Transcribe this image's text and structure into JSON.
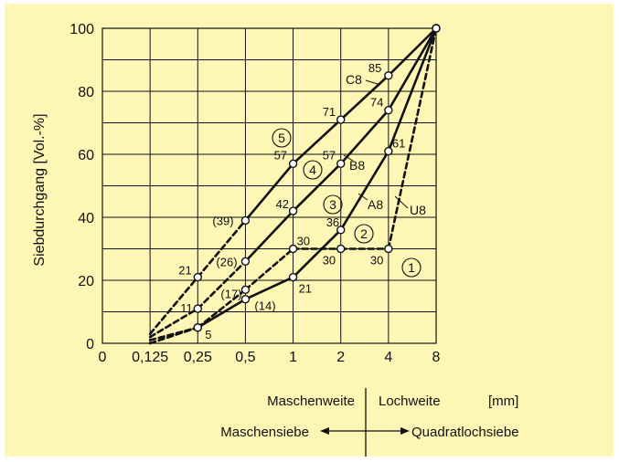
{
  "chart_data": {
    "type": "line",
    "ylabel": "Siebdurchgang [Vol.-%]",
    "ylim": [
      0,
      100
    ],
    "y_ticks": [
      "0",
      "20",
      "40",
      "60",
      "80",
      "100"
    ],
    "x_tick_labels": [
      "0",
      "0,125",
      "0,25",
      "0,5",
      "1",
      "2",
      "4",
      "8"
    ],
    "series": [
      {
        "name": "A8",
        "values": [
          {
            "x": 0.125,
            "y": 0
          },
          {
            "x": 0.25,
            "y": 5
          },
          {
            "x": 0.5,
            "y": 14
          },
          {
            "x": 1,
            "y": 21
          },
          {
            "x": 2,
            "y": 36
          },
          {
            "x": 4,
            "y": 61
          },
          {
            "x": 8,
            "y": 100
          }
        ]
      },
      {
        "name": "B8",
        "values": [
          {
            "x": 0.125,
            "y": 2
          },
          {
            "x": 0.25,
            "y": 11
          },
          {
            "x": 0.5,
            "y": 26
          },
          {
            "x": 1,
            "y": 42
          },
          {
            "x": 2,
            "y": 57
          },
          {
            "x": 4,
            "y": 74
          },
          {
            "x": 8,
            "y": 100
          }
        ]
      },
      {
        "name": "C8",
        "values": [
          {
            "x": 0.125,
            "y": 3
          },
          {
            "x": 0.25,
            "y": 21
          },
          {
            "x": 0.5,
            "y": 39
          },
          {
            "x": 1,
            "y": 57
          },
          {
            "x": 2,
            "y": 71
          },
          {
            "x": 4,
            "y": 85
          },
          {
            "x": 8,
            "y": 100
          }
        ]
      },
      {
        "name": "U8",
        "values": [
          {
            "x": 0.125,
            "y": 1
          },
          {
            "x": 0.25,
            "y": 5
          },
          {
            "x": 0.5,
            "y": 17
          },
          {
            "x": 1,
            "y": 30
          },
          {
            "x": 2,
            "y": 30
          },
          {
            "x": 4,
            "y": 30
          },
          {
            "x": 8,
            "y": 100
          }
        ]
      }
    ],
    "point_labels": [
      {
        "text": "5",
        "x": 0.25,
        "y": 5
      },
      {
        "text": "(14)",
        "x": 0.5,
        "y": 14
      },
      {
        "text": "21",
        "x": 1,
        "y": 21
      },
      {
        "text": "36",
        "x": 2,
        "y": 36
      },
      {
        "text": "61",
        "x": 4,
        "y": 61
      },
      {
        "text": "11",
        "x": 0.25,
        "y": 11
      },
      {
        "text": "(26)",
        "x": 0.5,
        "y": 26
      },
      {
        "text": "42",
        "x": 1,
        "y": 42
      },
      {
        "text": "57",
        "x": 2,
        "y": 57
      },
      {
        "text": "74",
        "x": 4,
        "y": 74
      },
      {
        "text": "21",
        "x": 0.25,
        "y": 21
      },
      {
        "text": "(39)",
        "x": 0.5,
        "y": 39
      },
      {
        "text": "57",
        "x": 1,
        "y": 57
      },
      {
        "text": "71",
        "x": 2,
        "y": 71
      },
      {
        "text": "85",
        "x": 4,
        "y": 85
      },
      {
        "text": "(17)",
        "x": 0.5,
        "y": 17
      },
      {
        "text": "30",
        "x": 1,
        "y": 30
      },
      {
        "text": "30",
        "x": 2,
        "y": 30
      },
      {
        "text": "30",
        "x": 4,
        "y": 30
      }
    ],
    "area_numbers": [
      "1",
      "2",
      "3",
      "4",
      "5"
    ],
    "grid": true
  },
  "footer": {
    "left_top": "Maschenweite",
    "right_top": "Lochweite",
    "unit": "[mm]",
    "left_bottom": "Maschensiebe",
    "right_bottom": "Quadratlochsiebe"
  },
  "colors": {
    "background": "#fdf6b5",
    "ink": "#111111"
  }
}
